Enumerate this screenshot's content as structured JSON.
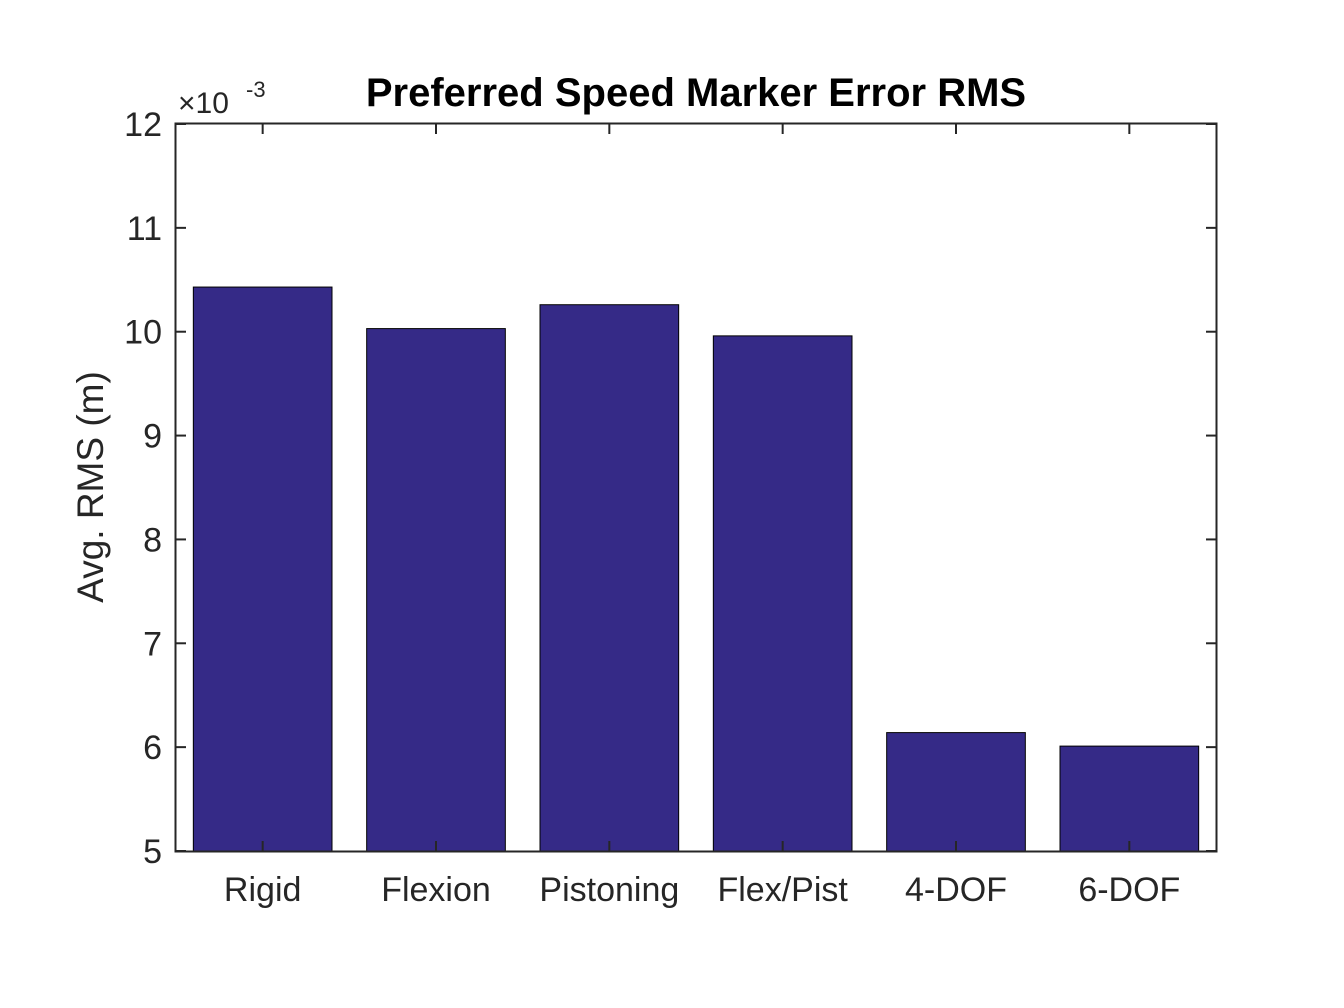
{
  "chart_data": {
    "type": "bar",
    "title": "Preferred Speed Marker Error RMS",
    "xlabel": "",
    "ylabel": "Avg. RMS (m)",
    "categories": [
      "Rigid",
      "Flexion",
      "Pistoning",
      "Flex/Pist",
      "4-DOF",
      "6-DOF"
    ],
    "values": [
      0.01043,
      0.01003,
      0.01026,
      0.00996,
      0.00614,
      0.00601
    ],
    "ylim": [
      0.005,
      0.012
    ],
    "yticks": [
      5,
      6,
      7,
      8,
      9,
      10,
      11,
      12
    ],
    "ytick_labels": [
      "5",
      "6",
      "7",
      "8",
      "9",
      "10",
      "11",
      "12"
    ],
    "y_exponent": {
      "base": "×10",
      "power": "-3"
    },
    "grid": false,
    "legend": "none",
    "bar_color": "#352a87"
  }
}
